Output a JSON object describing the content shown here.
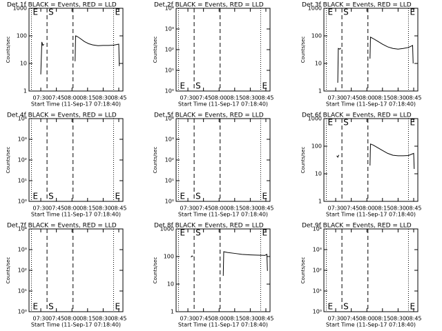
{
  "chart_data": [
    {
      "type": "line",
      "title": "Det 1f BLACK = Events, RED = LLD",
      "xlabel": "Start Time (11-Sep-17 07:18:40)",
      "ylabel": "Counts/sec",
      "color": "#000000",
      "log_y": true,
      "xlim": [
        "07:18:40",
        "08:49"
      ],
      "xticks": [
        "07:30",
        "07:45",
        "08:00",
        "08:15",
        "08:30",
        "08:45"
      ],
      "ylim": [
        1,
        1000
      ],
      "yticks": [
        1,
        10,
        100,
        1000
      ],
      "markers": [
        {
          "x": "07:21",
          "style": "dotted",
          "label": "E"
        },
        {
          "x": "07:36",
          "style": "dashed",
          "label": "S"
        },
        {
          "x": "08:01",
          "style": "dashed"
        },
        {
          "x": "08:40",
          "style": "dotted",
          "label": "E"
        }
      ],
      "marker_label_position": "top",
      "x": [
        "07:30",
        "07:31",
        "07:32",
        "07:33",
        null,
        "08:03",
        "08:03:30",
        "08:05",
        "08:08",
        "08:12",
        "08:16",
        "08:20",
        "08:25",
        "08:30",
        "08:35",
        "08:40",
        "08:45",
        "08:45:30"
      ],
      "values": [
        4,
        60,
        45,
        50,
        null,
        12,
        100,
        95,
        80,
        62,
        52,
        47,
        44,
        45,
        45,
        46,
        50,
        8
      ]
    },
    {
      "type": "line",
      "title": "Det 2f BLACK = Events, RED = LLD",
      "xlabel": "Start Time (11-Sep-17 07:18:40)",
      "ylabel": "Counts/sec",
      "color": "#000000",
      "log_y": true,
      "xlim": [
        "07:18:40",
        "08:49"
      ],
      "xticks": [
        "07:30",
        "07:45",
        "08:00",
        "08:15",
        "08:30",
        "08:45"
      ],
      "ylim": [
        1,
        10000
      ],
      "yticks": [
        {
          "value": 1,
          "label": "10⁰"
        },
        {
          "value": 10,
          "label": "10¹"
        },
        {
          "value": 100,
          "label": "10²"
        },
        {
          "value": 1000,
          "label": "10³"
        },
        {
          "value": 10000,
          "label": "10⁴"
        }
      ],
      "markers": [
        {
          "x": "07:21",
          "style": "dotted",
          "label": "E"
        },
        {
          "x": "07:36",
          "style": "dashed",
          "label": "S"
        },
        {
          "x": "08:01",
          "style": "dashed"
        },
        {
          "x": "08:40",
          "style": "dotted",
          "label": "E"
        }
      ],
      "marker_label_position": "bottom",
      "x": [],
      "values": []
    },
    {
      "type": "line",
      "title": "Det 3f BLACK = Events, RED = LLD",
      "xlabel": "Start Time (11-Sep-17 07:18:40)",
      "ylabel": "Counts/sec",
      "color": "#000000",
      "log_y": true,
      "xlim": [
        "07:18:40",
        "08:49"
      ],
      "xticks": [
        "07:30",
        "07:45",
        "08:00",
        "08:15",
        "08:30",
        "08:45"
      ],
      "ylim": [
        1,
        1000
      ],
      "yticks": [
        1,
        10,
        100,
        1000
      ],
      "markers": [
        {
          "x": "07:21",
          "style": "dotted",
          "label": "E"
        },
        {
          "x": "07:36",
          "style": "dashed",
          "label": "S"
        },
        {
          "x": "08:01",
          "style": "dashed"
        },
        {
          "x": "08:40",
          "style": "dotted",
          "label": "E"
        }
      ],
      "marker_label_position": "top",
      "x": [
        "07:32",
        "07:32:30",
        "07:34",
        "07:35",
        null,
        "08:03",
        "08:03:30",
        "08:06",
        "08:10",
        "08:15",
        "08:20",
        "08:25",
        "08:30",
        "08:35",
        "08:40",
        "08:44",
        "08:44:30"
      ],
      "values": [
        2,
        35,
        33,
        36,
        null,
        15,
        90,
        80,
        65,
        50,
        40,
        35,
        33,
        35,
        38,
        45,
        10
      ]
    },
    {
      "type": "line",
      "title": "Det 4f BLACK = Events, RED = LLD",
      "xlabel": "Start Time (11-Sep-17 07:18:40)",
      "ylabel": "Counts/sec",
      "color": "#000000",
      "log_y": true,
      "xlim": [
        "07:18:40",
        "08:49"
      ],
      "xticks": [
        "07:30",
        "07:45",
        "08:00",
        "08:15",
        "08:30",
        "08:45"
      ],
      "ylim": [
        1,
        10000
      ],
      "yticks": [
        {
          "value": 1,
          "label": "10⁰"
        },
        {
          "value": 10,
          "label": "10¹"
        },
        {
          "value": 100,
          "label": "10²"
        },
        {
          "value": 1000,
          "label": "10³"
        },
        {
          "value": 10000,
          "label": "10⁴"
        }
      ],
      "markers": [
        {
          "x": "07:21",
          "style": "dotted",
          "label": "E"
        },
        {
          "x": "07:36",
          "style": "dashed",
          "label": "S"
        },
        {
          "x": "08:01",
          "style": "dashed"
        },
        {
          "x": "08:40",
          "style": "dotted",
          "label": "E"
        }
      ],
      "marker_label_position": "bottom",
      "x": [],
      "values": []
    },
    {
      "type": "line",
      "title": "Det 5f BLACK = Events, RED = LLD",
      "xlabel": "Start Time (11-Sep-17 07:18:40)",
      "ylabel": "Counts/sec",
      "color": "#000000",
      "log_y": true,
      "xlim": [
        "07:18:40",
        "08:49"
      ],
      "xticks": [
        "07:30",
        "07:45",
        "08:00",
        "08:15",
        "08:30",
        "08:45"
      ],
      "ylim": [
        1,
        10000
      ],
      "yticks": [
        {
          "value": 1,
          "label": "10⁰"
        },
        {
          "value": 10,
          "label": "10¹"
        },
        {
          "value": 100,
          "label": "10²"
        },
        {
          "value": 1000,
          "label": "10³"
        },
        {
          "value": 10000,
          "label": "10⁴"
        }
      ],
      "markers": [
        {
          "x": "07:21",
          "style": "dotted",
          "label": "E"
        },
        {
          "x": "07:36",
          "style": "dashed",
          "label": "S"
        },
        {
          "x": "08:01",
          "style": "dashed"
        },
        {
          "x": "08:40",
          "style": "dotted",
          "label": "E"
        }
      ],
      "marker_label_position": "bottom",
      "x": [],
      "values": []
    },
    {
      "type": "line",
      "title": "Det 6f BLACK = Events, RED = LLD",
      "xlabel": "Start Time (11-Sep-17 07:18:40)",
      "ylabel": "Counts/sec",
      "color": "#000000",
      "log_y": true,
      "xlim": [
        "07:18:40",
        "08:49"
      ],
      "xticks": [
        "07:30",
        "07:45",
        "08:00",
        "08:15",
        "08:30",
        "08:45"
      ],
      "ylim": [
        1,
        1000
      ],
      "yticks": [
        1,
        10,
        100,
        1000
      ],
      "markers": [
        {
          "x": "07:21",
          "style": "dotted",
          "label": "E"
        },
        {
          "x": "07:36",
          "style": "dashed",
          "label": "S"
        },
        {
          "x": "08:01",
          "style": "dashed"
        },
        {
          "x": "08:40",
          "style": "dotted",
          "label": "E"
        }
      ],
      "marker_label_position": "top",
      "x": [
        "07:31",
        "07:32",
        "07:33",
        null,
        "08:03",
        "08:03:30",
        "08:06",
        "08:10",
        "08:15",
        "08:20",
        "08:25",
        "08:30",
        "08:35",
        "08:40",
        "08:45",
        "08:45:30"
      ],
      "values": [
        45,
        40,
        48,
        null,
        20,
        120,
        110,
        90,
        70,
        55,
        47,
        45,
        45,
        46,
        55,
        15
      ]
    },
    {
      "type": "line",
      "title": "Det 7f BLACK = Events, RED = LLD",
      "xlabel": "Start Time (11-Sep-17 07:18:40)",
      "ylabel": "Counts/sec",
      "color": "#000000",
      "log_y": true,
      "xlim": [
        "07:18:40",
        "08:49"
      ],
      "xticks": [
        "07:30",
        "07:45",
        "08:00",
        "08:15",
        "08:30",
        "08:45"
      ],
      "ylim": [
        1,
        10000
      ],
      "yticks": [
        {
          "value": 1,
          "label": "10⁰"
        },
        {
          "value": 10,
          "label": "10¹"
        },
        {
          "value": 100,
          "label": "10²"
        },
        {
          "value": 1000,
          "label": "10³"
        },
        {
          "value": 10000,
          "label": "10⁴"
        }
      ],
      "markers": [
        {
          "x": "07:21",
          "style": "dotted",
          "label": "E"
        },
        {
          "x": "07:36",
          "style": "dashed",
          "label": "S"
        },
        {
          "x": "08:01",
          "style": "dashed"
        },
        {
          "x": "08:40",
          "style": "dotted",
          "label": "E"
        }
      ],
      "marker_label_position": "bottom",
      "x": [],
      "values": []
    },
    {
      "type": "line",
      "title": "Det 8f BLACK = Events, RED = LLD",
      "xlabel": "Start Time (11-Sep-17 07:18:40)",
      "ylabel": "Counts/sec",
      "color": "#000000",
      "log_y": true,
      "xlim": [
        "07:18:40",
        "08:49"
      ],
      "xticks": [
        "07:30",
        "07:45",
        "08:00",
        "08:15",
        "08:30",
        "08:45"
      ],
      "ylim": [
        1,
        1000
      ],
      "yticks": [
        1,
        10,
        100,
        1000
      ],
      "markers": [
        {
          "x": "07:21",
          "style": "dotted",
          "label": "E"
        },
        {
          "x": "07:36",
          "style": "dashed",
          "label": "S"
        },
        {
          "x": "08:01",
          "style": "dashed"
        },
        {
          "x": "08:40",
          "style": "dotted",
          "label": "E"
        }
      ],
      "marker_label_position": "top",
      "x": [
        "07:33",
        "07:34",
        "07:35",
        null,
        "08:04",
        "08:04:30",
        "08:08",
        "08:15",
        "08:22",
        "08:30",
        "08:37",
        "08:44",
        "08:46",
        "08:46:30"
      ],
      "values": [
        95,
        105,
        100,
        null,
        20,
        150,
        140,
        130,
        120,
        115,
        112,
        110,
        120,
        30
      ]
    },
    {
      "type": "line",
      "title": "Det 9f BLACK = Events, RED = LLD",
      "xlabel": "Start Time (11-Sep-17 07:18:40)",
      "ylabel": "Counts/sec",
      "color": "#000000",
      "log_y": true,
      "xlim": [
        "07:18:40",
        "08:49"
      ],
      "xticks": [
        "07:30",
        "07:45",
        "08:00",
        "08:15",
        "08:30",
        "08:45"
      ],
      "ylim": [
        1,
        10000
      ],
      "yticks": [
        {
          "value": 1,
          "label": "10⁰"
        },
        {
          "value": 10,
          "label": "10¹"
        },
        {
          "value": 100,
          "label": "10²"
        },
        {
          "value": 1000,
          "label": "10³"
        },
        {
          "value": 10000,
          "label": "10⁴"
        }
      ],
      "markers": [
        {
          "x": "07:21",
          "style": "dotted",
          "label": "E"
        },
        {
          "x": "07:36",
          "style": "dashed",
          "label": "S"
        },
        {
          "x": "08:01",
          "style": "dashed"
        },
        {
          "x": "08:40",
          "style": "dotted",
          "label": "E"
        }
      ],
      "marker_label_position": "bottom",
      "x": [],
      "values": []
    }
  ]
}
